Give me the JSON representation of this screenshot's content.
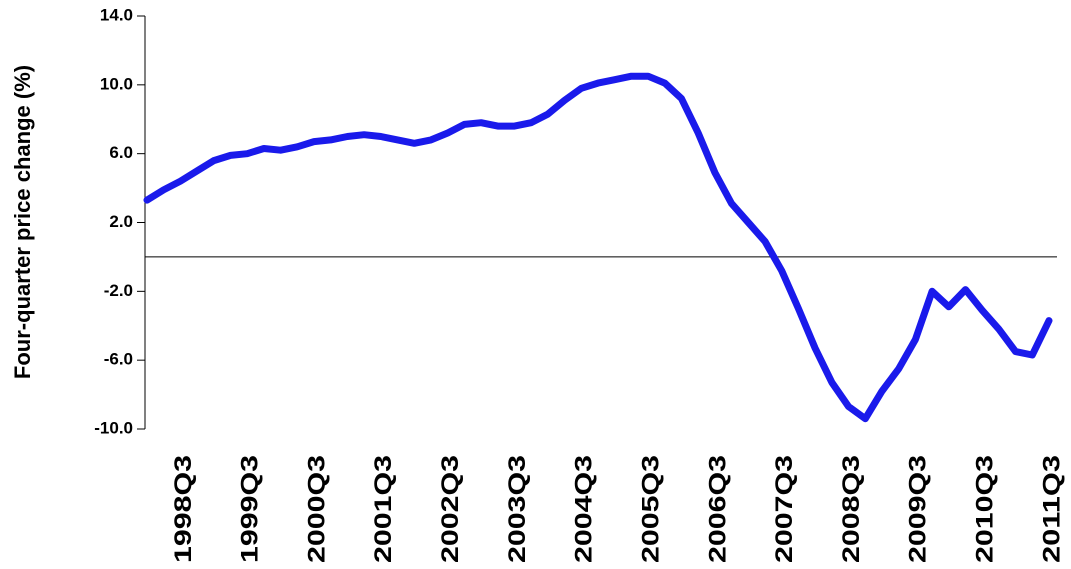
{
  "chart_data": {
    "type": "line",
    "y_label": "Four-quarter price change (%)",
    "categories": [
      null,
      null,
      "1998Q3",
      null,
      null,
      null,
      "1999Q3",
      null,
      null,
      null,
      "2000Q3",
      null,
      null,
      null,
      "2001Q3",
      null,
      null,
      null,
      "2002Q3",
      null,
      null,
      null,
      "2003Q3",
      null,
      null,
      null,
      "2004Q3",
      null,
      null,
      null,
      "2005Q3",
      null,
      null,
      null,
      "2006Q3",
      null,
      null,
      null,
      "2007Q3",
      null,
      null,
      null,
      "2008Q3",
      null,
      null,
      null,
      "2009Q3",
      null,
      null,
      null,
      "2010Q3",
      null,
      null,
      null,
      "2011Q3"
    ],
    "series": [
      {
        "color": "#1a1aeb",
        "values": [
          3.3,
          3.9,
          4.4,
          5.0,
          5.6,
          5.9,
          6.0,
          6.3,
          6.2,
          6.4,
          6.7,
          6.8,
          7.0,
          7.1,
          7.0,
          6.8,
          6.6,
          6.8,
          7.2,
          7.7,
          7.8,
          7.6,
          7.6,
          7.8,
          8.3,
          9.1,
          9.8,
          10.1,
          10.3,
          10.5,
          10.5,
          10.1,
          9.2,
          7.2,
          4.9,
          3.1,
          2.0,
          0.9,
          -0.8,
          -3.0,
          -5.3,
          -7.3,
          -8.7,
          -9.4,
          -7.8,
          -6.5,
          -4.8,
          -2.0,
          -2.9,
          -1.9,
          -3.1,
          -4.2,
          -5.5,
          -5.7,
          -3.7
        ]
      }
    ],
    "ylim": [
      -10,
      14
    ],
    "yticks": [
      {
        "value": -10,
        "label": "-10.0"
      },
      {
        "value": -6,
        "label": "-6.0"
      },
      {
        "value": -2,
        "label": "-2.0"
      },
      {
        "value": 2,
        "label": "2.0"
      },
      {
        "value": 6,
        "label": "6.0"
      },
      {
        "value": 10,
        "label": "10.0"
      },
      {
        "value": 14,
        "label": "14.0"
      }
    ],
    "zero_line": true
  }
}
